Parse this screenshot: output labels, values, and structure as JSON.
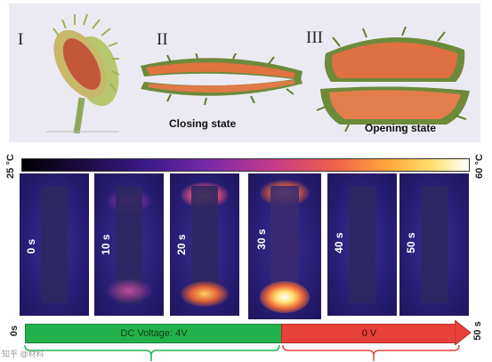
{
  "panels": {
    "i": "I",
    "ii": "II",
    "iii": "III",
    "closing_caption": "Closing state",
    "opening_caption": "Opening state"
  },
  "thermal": {
    "min_label": "25 °C",
    "max_label": "60 °C",
    "frames": [
      {
        "time": "0 s",
        "heat_level": 0.0
      },
      {
        "time": "10 s",
        "heat_level": 0.4
      },
      {
        "time": "20 s",
        "heat_level": 0.7
      },
      {
        "time": "30 s",
        "heat_level": 1.0
      },
      {
        "time": "40 s",
        "heat_level": 0.1
      },
      {
        "time": "50 s",
        "heat_level": 0.05
      }
    ]
  },
  "timeline": {
    "start_label": "0s",
    "end_label": "50 s",
    "voltage_on_label": "DC Voltage: 4V",
    "voltage_off_label": "0 V",
    "on_color": "#22b24c",
    "off_color": "#e8413a"
  },
  "watermark": "知乎 @材料"
}
